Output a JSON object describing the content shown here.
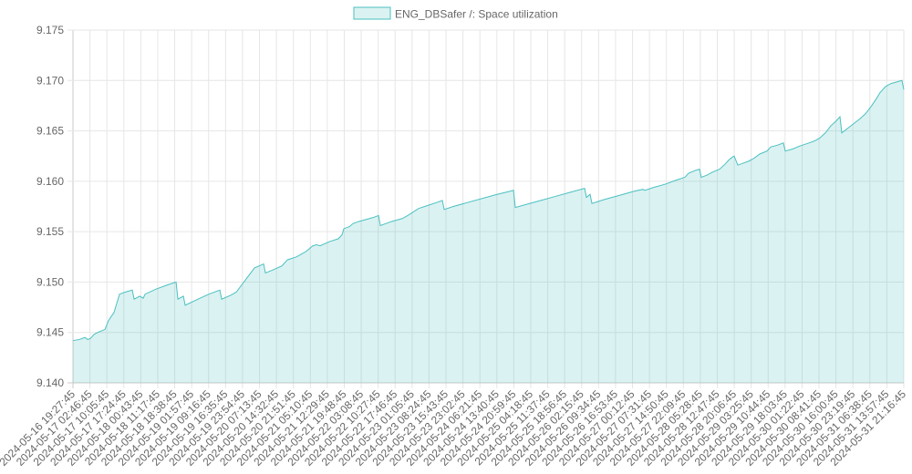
{
  "chart_data": {
    "type": "area",
    "title": "",
    "xlabel": "",
    "ylabel": "",
    "legend": {
      "position": "top-center"
    },
    "grid": true,
    "ylim": [
      9.14,
      9.175
    ],
    "yticks": [
      "9.175",
      "9.170",
      "9.165",
      "9.160",
      "9.155",
      "9.150",
      "9.145",
      "9.140"
    ],
    "xticks": [
      "2024-05-16 19:27:45",
      "2024-05-17 02:46:45",
      "2024-05-17 10:05:45",
      "2024-05-17 17:24:45",
      "2024-05-18 00:43:45",
      "2024-05-18 11:17:45",
      "2024-05-18 18:38:45",
      "2024-05-19 01:57:45",
      "2024-05-19 09:16:45",
      "2024-05-19 16:35:45",
      "2024-05-19 23:54:45",
      "2024-05-20 07:13:45",
      "2024-05-20 14:32:45",
      "2024-05-20 21:51:45",
      "2024-05-21 05:10:45",
      "2024-05-21 12:29:45",
      "2024-05-21 19:48:45",
      "2024-05-22 03:08:45",
      "2024-05-22 10:27:45",
      "2024-05-22 17:46:45",
      "2024-05-23 01:05:45",
      "2024-05-23 08:24:45",
      "2024-05-23 15:43:45",
      "2024-05-23 23:02:45",
      "2024-05-24 06:21:45",
      "2024-05-24 13:40:45",
      "2024-05-24 20:59:45",
      "2024-05-25 04:18:45",
      "2024-05-25 11:37:45",
      "2024-05-25 18:56:45",
      "2024-05-26 02:15:45",
      "2024-05-26 09:34:45",
      "2024-05-26 16:53:45",
      "2024-05-27 00:12:45",
      "2024-05-27 07:31:45",
      "2024-05-27 14:50:45",
      "2024-05-27 22:09:45",
      "2024-05-28 05:28:45",
      "2024-05-28 12:47:45",
      "2024-05-28 20:06:45",
      "2024-05-29 03:25:45",
      "2024-05-29 10:44:45",
      "2024-05-29 18:03:45",
      "2024-05-30 01:22:45",
      "2024-05-30 08:41:45",
      "2024-05-30 16:00:45",
      "2024-05-30 23:19:45",
      "2024-05-31 06:38:45",
      "2024-05-31 13:57:45",
      "2024-05-31 21:16:45"
    ],
    "series": [
      {
        "name": "ENG_DBSafer /: Space utilization",
        "color": "#4bc0c0",
        "fill": "rgba(75,192,192,0.2)",
        "points": [
          [
            "2024-05-16 19:27:45",
            9.1442
          ],
          [
            "2024-05-16 23:00:00",
            9.1443
          ],
          [
            "2024-05-17 02:00:00",
            9.1445
          ],
          [
            "2024-05-17 03:30:00",
            9.1443
          ],
          [
            "2024-05-17 05:00:00",
            9.1444
          ],
          [
            "2024-05-17 07:00:00",
            9.1448
          ],
          [
            "2024-05-17 09:00:00",
            9.145
          ],
          [
            "2024-05-17 13:00:00",
            9.1453
          ],
          [
            "2024-05-17 15:00:00",
            9.1462
          ],
          [
            "2024-05-17 18:00:00",
            9.147
          ],
          [
            "2024-05-17 21:00:00",
            9.1488
          ],
          [
            "2024-05-18 00:00:00",
            9.149
          ],
          [
            "2024-05-18 04:00:00",
            9.1492
          ],
          [
            "2024-05-18 05:00:00",
            9.1483
          ],
          [
            "2024-05-18 08:00:00",
            9.1486
          ],
          [
            "2024-05-18 10:00:00",
            9.1484
          ],
          [
            "2024-05-18 11:00:00",
            9.1488
          ],
          [
            "2024-05-18 17:00:00",
            9.1493
          ],
          [
            "2024-05-18 23:00:00",
            9.1497
          ],
          [
            "2024-05-19 04:00:00",
            9.15
          ],
          [
            "2024-05-19 05:00:00",
            9.1483
          ],
          [
            "2024-05-19 08:00:00",
            9.1486
          ],
          [
            "2024-05-19 09:00:00",
            9.1477
          ],
          [
            "2024-05-19 16:00:00",
            9.1483
          ],
          [
            "2024-05-19 22:00:00",
            9.1488
          ],
          [
            "2024-05-20 04:00:00",
            9.1492
          ],
          [
            "2024-05-20 05:00:00",
            9.1483
          ],
          [
            "2024-05-20 10:00:00",
            9.1487
          ],
          [
            "2024-05-20 13:00:00",
            9.149
          ],
          [
            "2024-05-20 18:00:00",
            9.1502
          ],
          [
            "2024-05-20 23:00:00",
            9.1514
          ],
          [
            "2024-05-21 04:00:00",
            9.1518
          ],
          [
            "2024-05-21 05:00:00",
            9.1509
          ],
          [
            "2024-05-21 09:00:00",
            9.1512
          ],
          [
            "2024-05-21 14:00:00",
            9.1516
          ],
          [
            "2024-05-21 17:00:00",
            9.1522
          ],
          [
            "2024-05-21 22:00:00",
            9.1525
          ],
          [
            "2024-05-22 01:00:00",
            9.1528
          ],
          [
            "2024-05-22 03:00:00",
            9.153
          ],
          [
            "2024-05-22 07:00:00",
            9.1536
          ],
          [
            "2024-05-22 09:00:00",
            9.1537
          ],
          [
            "2024-05-22 11:00:00",
            9.1536
          ],
          [
            "2024-05-22 16:00:00",
            9.154
          ],
          [
            "2024-05-22 21:00:00",
            9.1543
          ],
          [
            "2024-05-22 23:00:00",
            9.1547
          ],
          [
            "2024-05-23 00:00:00",
            9.1553
          ],
          [
            "2024-05-23 03:00:00",
            9.1555
          ],
          [
            "2024-05-23 05:00:00",
            9.1558
          ],
          [
            "2024-05-23 08:00:00",
            9.156
          ],
          [
            "2024-05-23 12:00:00",
            9.1562
          ],
          [
            "2024-05-23 16:00:00",
            9.1564
          ],
          [
            "2024-05-23 19:00:00",
            9.1566
          ],
          [
            "2024-05-23 20:00:00",
            9.1556
          ],
          [
            "2024-05-24 02:00:00",
            9.156
          ],
          [
            "2024-05-24 08:00:00",
            9.1563
          ],
          [
            "2024-05-24 11:00:00",
            9.1566
          ],
          [
            "2024-05-24 17:00:00",
            9.1573
          ],
          [
            "2024-05-24 22:00:00",
            9.1576
          ],
          [
            "2024-05-25 03:00:00",
            9.1579
          ],
          [
            "2024-05-25 06:00:00",
            9.1581
          ],
          [
            "2024-05-25 07:00:00",
            9.1572
          ],
          [
            "2024-05-25 12:00:00",
            9.1575
          ],
          [
            "2024-05-25 20:00:00",
            9.1579
          ],
          [
            "2024-05-26 04:00:00",
            9.1583
          ],
          [
            "2024-05-26 12:00:00",
            9.1587
          ],
          [
            "2024-05-26 19:00:00",
            9.159
          ],
          [
            "2024-05-26 21:00:00",
            9.1591
          ],
          [
            "2024-05-26 22:00:00",
            9.1574
          ],
          [
            "2024-05-27 04:00:00",
            9.1577
          ],
          [
            "2024-05-27 12:00:00",
            9.1581
          ],
          [
            "2024-05-27 20:00:00",
            9.1585
          ],
          [
            "2024-05-28 04:00:00",
            9.1589
          ],
          [
            "2024-05-28 12:00:00",
            9.1593
          ],
          [
            "2024-05-28 13:00:00",
            9.1584
          ],
          [
            "2024-05-28 15:00:00",
            9.1587
          ],
          [
            "2024-05-28 16:00:00",
            9.1578
          ],
          [
            "2024-05-28 23:00:00",
            9.1582
          ],
          [
            "2024-05-29 07:00:00",
            9.1586
          ],
          [
            "2024-05-29 15:00:00",
            9.159
          ],
          [
            "2024-05-29 20:00:00",
            9.1592
          ],
          [
            "2024-05-29 21:00:00",
            9.1591
          ],
          [
            "2024-05-30 02:00:00",
            9.1594
          ],
          [
            "2024-05-30 08:00:00",
            9.1597
          ],
          [
            "2024-05-30 14:00:00",
            9.1601
          ],
          [
            "2024-05-30 19:00:00",
            9.1604
          ],
          [
            "2024-05-30 21:00:00",
            9.1608
          ],
          [
            "2024-05-31 01:00:00",
            9.1611
          ],
          [
            "2024-05-31 03:00:00",
            9.1612
          ],
          [
            "2024-05-31 04:00:00",
            9.1604
          ],
          [
            "2024-05-31 07:00:00",
            9.1606
          ],
          [
            "2024-05-31 10:00:00",
            9.1609
          ],
          [
            "2024-05-31 14:00:00",
            9.1612
          ],
          [
            "2024-05-31 17:00:00",
            9.1617
          ],
          [
            "2024-05-31 19:00:00",
            9.1621
          ],
          [
            "2024-05-31 21:00:00",
            9.1624
          ],
          [
            "2024-05-31 22:00:00",
            9.1625
          ],
          [
            "2024-06-01 00:00:00",
            9.1616
          ],
          [
            "2024-06-01 03:00:00",
            9.1618
          ],
          [
            "2024-06-01 06:00:00",
            9.162
          ],
          [
            "2024-06-01 08:00:00",
            9.1622
          ],
          [
            "2024-06-01 09:00:00",
            9.1623
          ],
          [
            "2024-06-01 12:00:00",
            9.1627
          ],
          [
            "2024-06-01 16:00:00",
            9.163
          ],
          [
            "2024-06-01 18:00:00",
            9.1634
          ],
          [
            "2024-06-01 22:00:00",
            9.1636
          ],
          [
            "2024-06-02 01:00:00",
            9.1638
          ],
          [
            "2024-06-02 02:00:00",
            9.163
          ],
          [
            "2024-06-02 06:00:00",
            9.1632
          ],
          [
            "2024-06-02 10:00:00",
            9.1635
          ],
          [
            "2024-06-02 15:00:00",
            9.1638
          ],
          [
            "2024-06-02 18:00:00",
            9.164
          ],
          [
            "2024-06-02 21:00:00",
            9.1643
          ],
          [
            "2024-06-03 00:00:00",
            9.1648
          ],
          [
            "2024-06-03 03:00:00",
            9.1655
          ],
          [
            "2024-06-03 06:00:00",
            9.166
          ],
          [
            "2024-06-03 08:00:00",
            9.1664
          ],
          [
            "2024-06-03 09:00:00",
            9.1648
          ],
          [
            "2024-06-03 14:00:00",
            9.1655
          ],
          [
            "2024-06-03 19:00:00",
            9.1662
          ],
          [
            "2024-06-03 22:00:00",
            9.1667
          ],
          [
            "2024-06-04 01:00:00",
            9.1674
          ],
          [
            "2024-06-04 04:00:00",
            9.1682
          ],
          [
            "2024-06-04 06:00:00",
            9.1688
          ],
          [
            "2024-06-04 09:00:00",
            9.1694
          ],
          [
            "2024-06-04 12:00:00",
            9.1697
          ],
          [
            "2024-06-04 16:00:00",
            9.1699
          ],
          [
            "2024-06-04 18:00:00",
            9.17
          ],
          [
            "2024-06-04 19:00:00",
            9.1691
          ]
        ]
      }
    ]
  }
}
